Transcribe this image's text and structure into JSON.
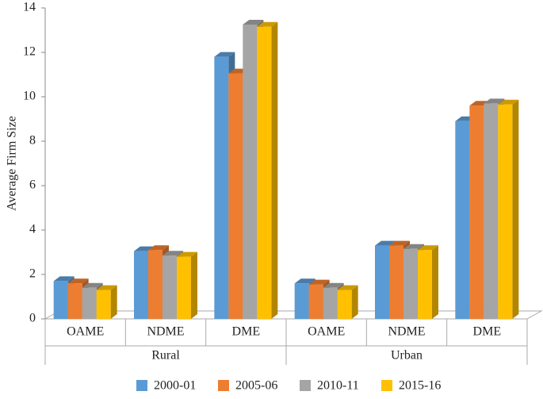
{
  "chart_data": {
    "type": "bar3d",
    "y_label": "Average Firm Size",
    "categories": [
      "OAME",
      "NDME",
      "DME",
      "OAME",
      "NDME",
      "DME"
    ],
    "groups": [
      "Rural",
      "Urban"
    ],
    "series": [
      {
        "name": "2000-01",
        "color": "#5b9bd5",
        "values": [
          1.7,
          3.05,
          11.8,
          1.6,
          3.3,
          8.9
        ]
      },
      {
        "name": "2005-06",
        "color": "#ed7d31",
        "values": [
          1.6,
          3.1,
          11.05,
          1.55,
          3.3,
          9.6
        ]
      },
      {
        "name": "2010-11",
        "color": "#a5a5a5",
        "values": [
          1.4,
          2.85,
          13.25,
          1.4,
          3.15,
          9.7
        ]
      },
      {
        "name": "2015-16",
        "color": "#ffc000",
        "values": [
          1.3,
          2.8,
          13.15,
          1.3,
          3.1,
          9.65
        ]
      }
    ],
    "ylim": [
      0,
      14
    ],
    "yticks": [
      0,
      2,
      4,
      6,
      8,
      10,
      12,
      14
    ]
  }
}
